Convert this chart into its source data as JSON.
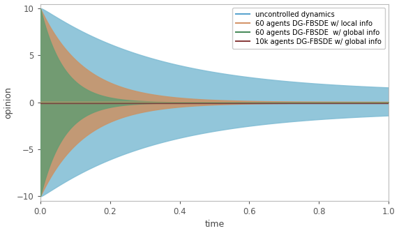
{
  "title": "",
  "xlabel": "time",
  "ylabel": "opinion",
  "xlim": [
    0.0,
    1.0
  ],
  "ylim": [
    -10.5,
    10.5
  ],
  "yticks": [
    -10,
    -5,
    0,
    5,
    10
  ],
  "xticks": [
    0.0,
    0.2,
    0.4,
    0.6,
    0.8,
    1.0
  ],
  "bg_color": "#ffffff",
  "uncontrolled_fill": "#7fbcd4",
  "local_60_fill": "#c8956a",
  "global_60_fill": "#6a9c72",
  "uncontrolled_line_color": "#5ba4cf",
  "local_60_line_color": "#d4956a",
  "global_60_line_color": "#4a8c5c",
  "global_10k_line_color": "#8b4040",
  "legend_entries": [
    {
      "label": "uncontrolled dynamics",
      "color": "#5ba4cf"
    },
    {
      "label": "60 agents DG-FBSDE w/ local info",
      "color": "#d4956a"
    },
    {
      "label": "60 agents DG-FBSDE  w/ global info",
      "color": "#4a8c5c"
    },
    {
      "label": "10k agents DG-FBSDE w/ global info",
      "color": "#8b4040"
    }
  ]
}
